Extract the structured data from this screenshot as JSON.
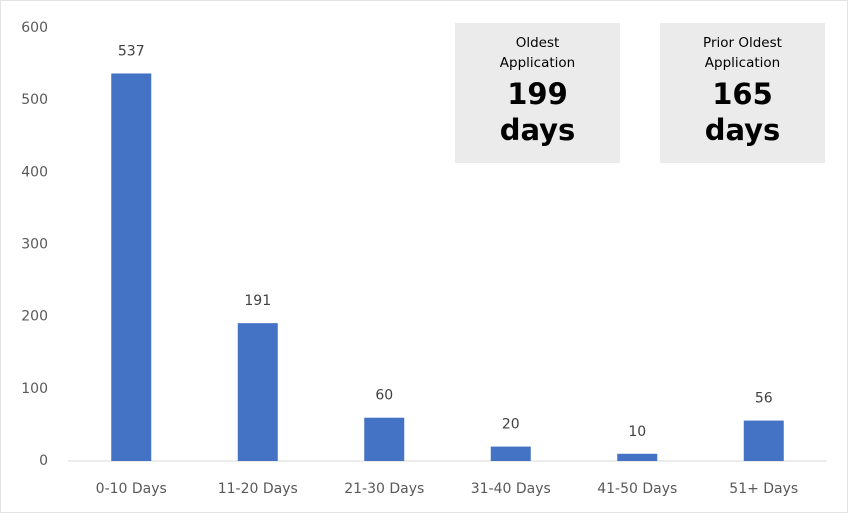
{
  "chart_data": {
    "type": "bar",
    "categories": [
      "0-10 Days",
      "11-20 Days",
      "21-30 Days",
      "31-40 Days",
      "41-50 Days",
      "51+ Days"
    ],
    "values": [
      537,
      191,
      60,
      20,
      10,
      56
    ],
    "color": "#4472c4",
    "ylim": [
      0,
      600
    ],
    "yticks": [
      0,
      100,
      200,
      300,
      400,
      500,
      600
    ],
    "grid": false,
    "annotations": [
      {
        "label": "Oldest Application",
        "value": 199,
        "unit": "days"
      },
      {
        "label": "Prior Oldest Application",
        "value": 165,
        "unit": "days"
      }
    ]
  }
}
